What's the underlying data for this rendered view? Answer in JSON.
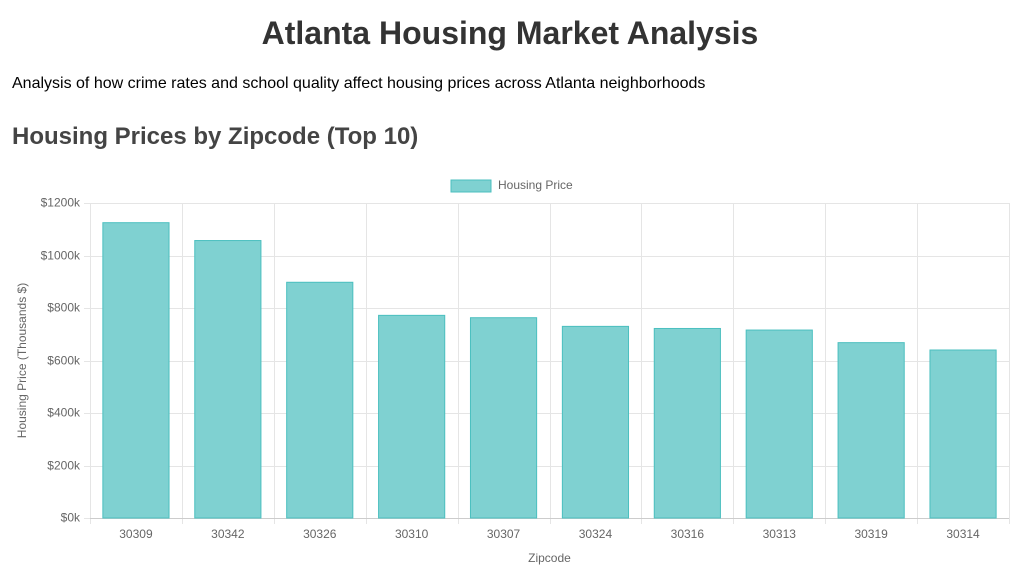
{
  "page": {
    "title": "Atlanta Housing Market Analysis",
    "description": "Analysis of how crime rates and school quality affect housing prices across Atlanta neighborhoods"
  },
  "section": {
    "title": "Housing Prices by Zipcode (Top 10)"
  },
  "colors": {
    "bar_fill": "#7fd1d1",
    "bar_stroke": "#4bbfbf",
    "grid": "#e5e5e5",
    "tick_text": "#666666"
  },
  "chart_data": {
    "type": "bar",
    "title": "",
    "xlabel": "Zipcode",
    "ylabel": "Housing Price (Thousands $)",
    "legend_position": "top-center",
    "grid": true,
    "ylim": [
      0,
      1200
    ],
    "yticks": [
      0,
      200,
      400,
      600,
      800,
      1000,
      1200
    ],
    "ytick_labels": [
      "$0k",
      "$200k",
      "$400k",
      "$600k",
      "$800k",
      "$1000k",
      "$1200k"
    ],
    "categories": [
      "30309",
      "30342",
      "30326",
      "30310",
      "30307",
      "30324",
      "30316",
      "30313",
      "30319",
      "30314"
    ],
    "series": [
      {
        "name": "Housing Price",
        "values": [
          1125,
          1057,
          898,
          772,
          763,
          730,
          722,
          716,
          668,
          640
        ]
      }
    ]
  }
}
